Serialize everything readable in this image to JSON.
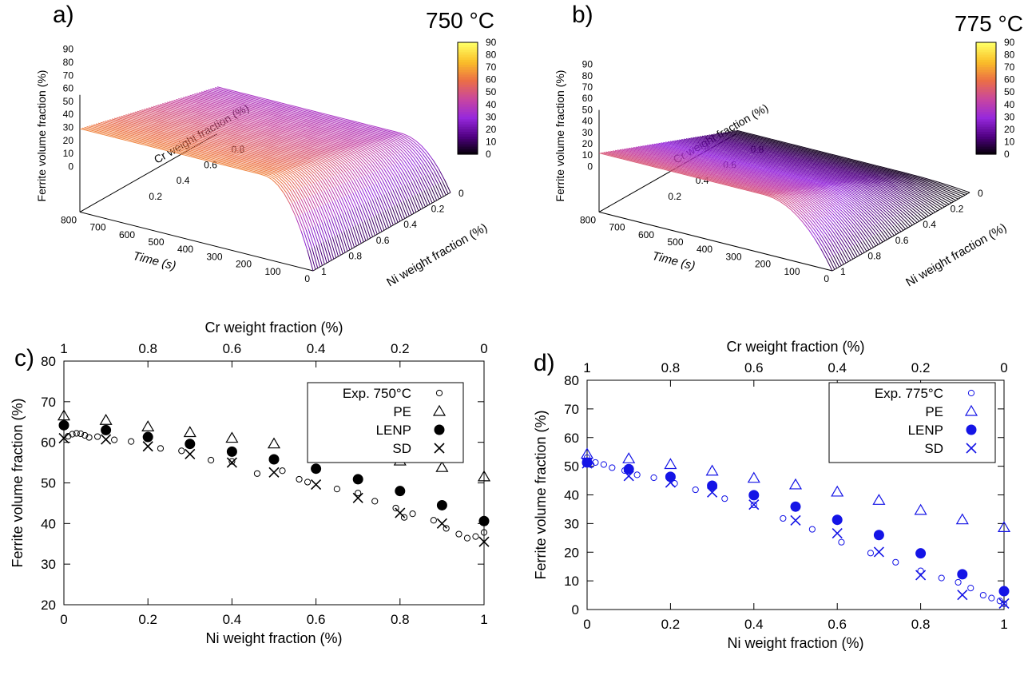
{
  "panels_3d": [
    {
      "panel_label": "a)",
      "temperature": "750 °C",
      "zlabel": "Ferrite volume fraction (%)",
      "time_label": "Time (s)",
      "cr_label": "Cr weight fraction (%)",
      "ni_label": "Ni weight fraction (%)",
      "z_ticks": [
        "0",
        "10",
        "20",
        "30",
        "40",
        "50",
        "60",
        "70",
        "80",
        "90"
      ],
      "time_ticks": [
        "800",
        "700",
        "600",
        "500",
        "400",
        "300",
        "200",
        "100",
        "0"
      ],
      "cr_ticks": [
        "0.2",
        "0.4",
        "0.6",
        "0.8"
      ],
      "ni_ticks": [
        "0",
        "0.2",
        "0.4",
        "0.6",
        "0.8",
        "1"
      ],
      "colorbar_ticks": [
        "0",
        "10",
        "20",
        "30",
        "40",
        "50",
        "60",
        "70",
        "80",
        "90"
      ],
      "plateau_max": 64,
      "plateau_min": 36,
      "rise_fraction": 0.22
    },
    {
      "panel_label": "b)",
      "temperature": "775 °C",
      "zlabel": "Ferrite volume fraction (%)",
      "time_label": "Time (s)",
      "cr_label": "Cr weight fraction (%)",
      "ni_label": "Ni weight fraction (%)",
      "z_ticks": [
        "0",
        "10",
        "20",
        "30",
        "40",
        "50",
        "60",
        "70",
        "80",
        "90"
      ],
      "time_ticks": [
        "800",
        "700",
        "600",
        "500",
        "400",
        "300",
        "200",
        "100",
        "0"
      ],
      "cr_ticks": [
        "0.2",
        "0.4",
        "0.6",
        "0.8"
      ],
      "ni_ticks": [
        "0",
        "0.2",
        "0.4",
        "0.6",
        "0.8",
        "1"
      ],
      "colorbar_ticks": [
        "0",
        "10",
        "20",
        "30",
        "40",
        "50",
        "60",
        "70",
        "80",
        "90"
      ],
      "plateau_max": 52,
      "plateau_min": 3,
      "rise_fraction": 0.3
    }
  ],
  "chart_data": [
    {
      "panel_label": "c)",
      "type": "scatter",
      "xlabel": "Ni weight fraction (%)",
      "x2label": "Cr weight fraction (%)",
      "ylabel": "Ferrite volume fraction (%)",
      "xlim": [
        0,
        1
      ],
      "ylim": [
        20,
        80
      ],
      "x_ticks": [
        "0",
        "0.2",
        "0.4",
        "0.6",
        "0.8",
        "1"
      ],
      "x2_ticks": [
        "1",
        "0.8",
        "0.6",
        "0.4",
        "0.2",
        "0"
      ],
      "y_ticks": [
        "20",
        "30",
        "40",
        "50",
        "60",
        "70",
        "80"
      ],
      "color": "#000000",
      "series": [
        {
          "name": "Exp. 750°C",
          "marker": "circle-open",
          "x": [
            0.01,
            0.02,
            0.03,
            0.04,
            0.05,
            0.06,
            0.08,
            0.12,
            0.16,
            0.23,
            0.28,
            0.35,
            0.4,
            0.46,
            0.52,
            0.56,
            0.58,
            0.65,
            0.7,
            0.74,
            0.79,
            0.81,
            0.83,
            0.88,
            0.91,
            0.94,
            0.96,
            0.98,
            1.0
          ],
          "y": [
            61.5,
            62.0,
            62.2,
            62.1,
            61.7,
            61.2,
            61.4,
            60.6,
            60.2,
            58.5,
            57.9,
            55.6,
            55.3,
            52.3,
            53.0,
            50.9,
            50.2,
            48.5,
            47.5,
            45.5,
            43.8,
            41.5,
            42.4,
            40.8,
            38.8,
            37.4,
            36.4,
            36.8,
            37.8
          ]
        },
        {
          "name": "PE",
          "marker": "triangle-open",
          "x": [
            0,
            0.1,
            0.2,
            0.3,
            0.4,
            0.5,
            0.6,
            0.7,
            0.8,
            0.9,
            1.0
          ],
          "y": [
            66.5,
            65.4,
            63.8,
            62.4,
            61.0,
            59.6,
            58.2,
            57.0,
            55.4,
            53.8,
            51.5
          ]
        },
        {
          "name": "LENP",
          "marker": "circle-filled",
          "x": [
            0,
            0.1,
            0.2,
            0.3,
            0.4,
            0.5,
            0.6,
            0.7,
            0.8,
            0.9,
            1.0
          ],
          "y": [
            64.2,
            63.0,
            61.3,
            59.6,
            57.7,
            55.8,
            53.5,
            50.9,
            48.0,
            44.5,
            40.6
          ]
        },
        {
          "name": "SD",
          "marker": "cross",
          "x": [
            0,
            0.1,
            0.2,
            0.3,
            0.4,
            0.5,
            0.6,
            0.7,
            0.8,
            0.9,
            1.0
          ],
          "y": [
            61.0,
            60.7,
            59.0,
            57.1,
            55.0,
            52.6,
            49.6,
            46.3,
            42.6,
            40.0,
            35.5
          ]
        }
      ],
      "legend": "top-right"
    },
    {
      "panel_label": "d)",
      "type": "scatter",
      "xlabel": "Ni weight fraction (%)",
      "x2label": "Cr weight fraction (%)",
      "ylabel": "Ferrite volume fraction (%)",
      "xlim": [
        0,
        1
      ],
      "ylim": [
        0,
        80
      ],
      "x_ticks": [
        "0",
        "0.2",
        "0.4",
        "0.6",
        "0.8",
        "1"
      ],
      "x2_ticks": [
        "1",
        "0.8",
        "0.6",
        "0.4",
        "0.2",
        "0"
      ],
      "y_ticks": [
        "0",
        "10",
        "20",
        "30",
        "40",
        "50",
        "60",
        "70",
        "80"
      ],
      "color": "#1414e6",
      "series": [
        {
          "name": "Exp. 775°C",
          "marker": "circle-open",
          "x": [
            0.0,
            0.005,
            0.01,
            0.02,
            0.04,
            0.06,
            0.09,
            0.12,
            0.16,
            0.21,
            0.26,
            0.33,
            0.4,
            0.47,
            0.54,
            0.61,
            0.68,
            0.74,
            0.8,
            0.85,
            0.89,
            0.92,
            0.95,
            0.97,
            0.99,
            1.0
          ],
          "y": [
            53.0,
            51.2,
            50.5,
            51.3,
            50.6,
            49.5,
            48.5,
            47.0,
            46.0,
            44.0,
            41.8,
            38.7,
            36.5,
            31.8,
            28.0,
            23.5,
            19.7,
            16.5,
            13.5,
            11.0,
            9.5,
            7.5,
            5.0,
            4.0,
            3.0,
            2.0
          ]
        },
        {
          "name": "PE",
          "marker": "triangle-open",
          "x": [
            0,
            0.1,
            0.2,
            0.3,
            0.4,
            0.5,
            0.6,
            0.7,
            0.8,
            0.9,
            1.0
          ],
          "y": [
            54.2,
            52.6,
            50.6,
            48.3,
            45.8,
            43.5,
            41.0,
            38.1,
            34.6,
            31.3,
            28.6
          ]
        },
        {
          "name": "LENP",
          "marker": "circle-filled",
          "x": [
            0,
            0.1,
            0.2,
            0.3,
            0.4,
            0.5,
            0.6,
            0.7,
            0.8,
            0.9,
            1.0
          ],
          "y": [
            51.3,
            49.0,
            46.3,
            43.2,
            39.9,
            35.9,
            31.3,
            26.0,
            19.6,
            12.3,
            6.4
          ]
        },
        {
          "name": "SD",
          "marker": "cross",
          "x": [
            0,
            0.1,
            0.2,
            0.3,
            0.4,
            0.5,
            0.6,
            0.7,
            0.8,
            0.9,
            1.0
          ],
          "y": [
            51.0,
            46.6,
            44.3,
            40.9,
            36.6,
            31.1,
            26.6,
            20.1,
            12.0,
            5.1,
            2.1
          ]
        }
      ],
      "legend": "top-right"
    }
  ]
}
